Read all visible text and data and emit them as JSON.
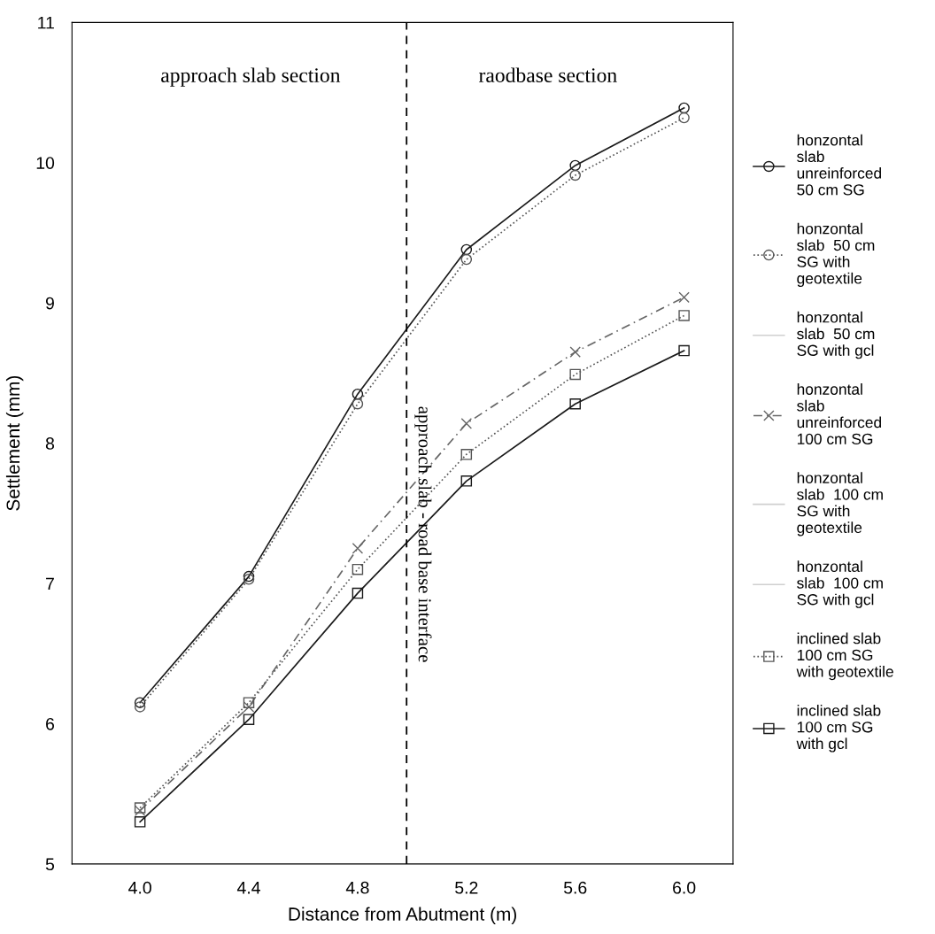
{
  "chart_data": {
    "type": "line",
    "xlabel": "Distance from Abutment (m)",
    "ylabel": "Settlement (mm)",
    "x": [
      4.0,
      4.4,
      4.8,
      5.2,
      5.6,
      6.0
    ],
    "xlim": [
      3.75,
      6.18
    ],
    "xticks": [
      {
        "value": 4.0,
        "label": "4.0"
      },
      4.4,
      4.8,
      5.2,
      5.6,
      {
        "value": 6.0,
        "label": "6.0"
      }
    ],
    "ylim": [
      5,
      11
    ],
    "yticks": [
      5,
      6,
      7,
      8,
      9,
      10,
      11
    ],
    "grid": false,
    "legend": "right",
    "series": [
      {
        "name": "honzontal\nslab\nunreinforced\n50 cm SG",
        "color": "#1a1a1a",
        "marker": "circle",
        "line_style": "solid",
        "values": [
          6.15,
          7.05,
          8.35,
          9.38,
          9.98,
          10.39
        ]
      },
      {
        "name": "honzontal\nslab  50 cm\nSG with\ngeotextile",
        "color": "#555555",
        "marker": "circle",
        "line_style": "dotted",
        "values": [
          6.12,
          7.03,
          8.28,
          9.31,
          9.91,
          10.32
        ]
      },
      {
        "name": "honzontal\nslab  50 cm\nSG with gcl",
        "color": "#d0d0d0",
        "marker": "none",
        "line_style": "solid",
        "values": [
          null,
          null,
          null,
          null,
          null,
          null
        ]
      },
      {
        "name": "honzontal\nslab\nunreinforced\n100 cm SG",
        "color": "#666666",
        "marker": "cross",
        "line_style": "dashed",
        "values": [
          5.38,
          6.12,
          7.25,
          8.14,
          8.65,
          9.04
        ]
      },
      {
        "name": "honzontal\nslab  100 cm\nSG with\ngeotextile",
        "color": "#d0d0d0",
        "marker": "none",
        "line_style": "solid",
        "values": [
          null,
          null,
          null,
          null,
          null,
          null
        ]
      },
      {
        "name": "honzontal\nslab  100 cm\nSG with gcl",
        "color": "#d0d0d0",
        "marker": "none",
        "line_style": "solid",
        "values": [
          null,
          null,
          null,
          null,
          null,
          null
        ]
      },
      {
        "name": "inclined slab\n100 cm SG\nwith geotextile",
        "color": "#555555",
        "marker": "square",
        "line_style": "dotted",
        "values": [
          5.4,
          6.15,
          7.1,
          7.92,
          8.49,
          8.91
        ]
      },
      {
        "name": "inclined slab\n100 cm SG\nwith gcl",
        "color": "#1a1a1a",
        "marker": "square",
        "line_style": "solid",
        "values": [
          5.3,
          6.03,
          6.93,
          7.73,
          8.28,
          8.66
        ]
      }
    ],
    "ref_lines": [
      {
        "axis": "x",
        "value": 4.98,
        "label": "approach slab - road base interface",
        "line_style": "dashed",
        "color": "#000000"
      }
    ],
    "annotations": [
      "approach slab section",
      "raodbase section"
    ]
  }
}
